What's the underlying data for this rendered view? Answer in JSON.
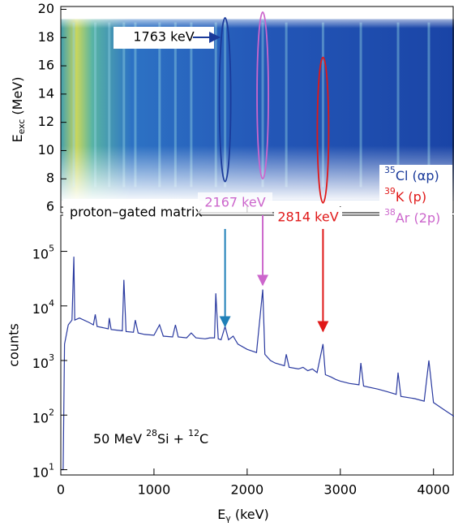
{
  "chart_data": [
    {
      "type": "heatmap",
      "ylabel_parts": [
        "E",
        "exc",
        " (MeV)"
      ],
      "ylim": [
        5.6,
        20.2
      ],
      "yticks": [
        6,
        8,
        10,
        12,
        14,
        16,
        18,
        20
      ],
      "xlim": [
        0,
        4220
      ],
      "lines": [
        140,
        370,
        520,
        677,
        800,
        1060,
        1230,
        1400,
        1664,
        1763,
        2167,
        2420,
        2814,
        3220,
        3620,
        3950
      ],
      "matrix_label": "proton–gated matrix",
      "annotations": [
        {
          "label": "1763 keV",
          "x": 1763,
          "y_range": [
            7.8,
            19.4
          ],
          "color": "#1a3a9a"
        },
        {
          "label": "2167 keV",
          "x": 2167,
          "y_range": [
            8.0,
            19.8
          ],
          "color": "#cc66cc"
        },
        {
          "label": "2814 keV",
          "x": 2814,
          "y_range": [
            6.3,
            16.6
          ],
          "color": "#e01818"
        }
      ],
      "legend": [
        {
          "sup": "35",
          "text": "Cl (αp)",
          "color": "#1a3a9a"
        },
        {
          "sup": "39",
          "text": "K  (p)",
          "color": "#e01818"
        },
        {
          "sup": "38",
          "text": "Ar (2p)",
          "color": "#cc66cc"
        }
      ]
    },
    {
      "type": "line",
      "log_y": true,
      "color": "#2a3aa0",
      "xlabel_parts": [
        "E",
        "γ",
        " (keV)"
      ],
      "ylabel": "counts",
      "annotation_parts": [
        "50 MeV ",
        "28",
        "Si + ",
        "12",
        "C"
      ],
      "xlim": [
        0,
        4220
      ],
      "xticks": [
        0,
        1000,
        2000,
        3000,
        4000
      ],
      "ylim": [
        8,
        460000
      ],
      "yticks": [
        {
          "value": 10,
          "label": "10",
          "exponent": "1"
        },
        {
          "value": 100,
          "label": "10",
          "exponent": "2"
        },
        {
          "value": 1000,
          "label": "10",
          "exponent": "3"
        },
        {
          "value": 10000,
          "label": "10",
          "exponent": "4"
        },
        {
          "value": 100000,
          "label": "10",
          "exponent": "5"
        }
      ],
      "x": [
        0,
        25,
        40,
        80,
        120,
        140,
        150,
        200,
        300,
        350,
        370,
        390,
        450,
        510,
        520,
        540,
        600,
        660,
        677,
        700,
        780,
        800,
        830,
        900,
        1000,
        1060,
        1100,
        1200,
        1230,
        1260,
        1350,
        1400,
        1450,
        1550,
        1600,
        1650,
        1664,
        1690,
        1720,
        1763,
        1800,
        1850,
        1900,
        2000,
        2100,
        2167,
        2190,
        2250,
        2300,
        2400,
        2420,
        2450,
        2550,
        2600,
        2650,
        2700,
        2750,
        2814,
        2840,
        2900,
        2950,
        3000,
        3100,
        3200,
        3220,
        3250,
        3400,
        3500,
        3600,
        3620,
        3650,
        3800,
        3900,
        3950,
        4000,
        4100,
        4200,
        4220
      ],
      "values": [
        10,
        10,
        2000,
        4500,
        5500,
        80000,
        5500,
        6000,
        5000,
        4500,
        7000,
        4200,
        4000,
        3800,
        6000,
        3700,
        3600,
        3500,
        30000,
        3400,
        3300,
        5500,
        3200,
        3000,
        2900,
        4500,
        2800,
        2700,
        4500,
        2700,
        2600,
        3200,
        2600,
        2500,
        2600,
        2600,
        17000,
        2500,
        2400,
        4200,
        2400,
        2800,
        2000,
        1600,
        1400,
        20000,
        1300,
        1000,
        900,
        800,
        1300,
        750,
        700,
        750,
        650,
        700,
        600,
        2000,
        550,
        500,
        450,
        420,
        380,
        360,
        900,
        340,
        300,
        270,
        240,
        600,
        220,
        200,
        180,
        1000,
        170,
        130,
        100,
        95
      ]
    }
  ]
}
